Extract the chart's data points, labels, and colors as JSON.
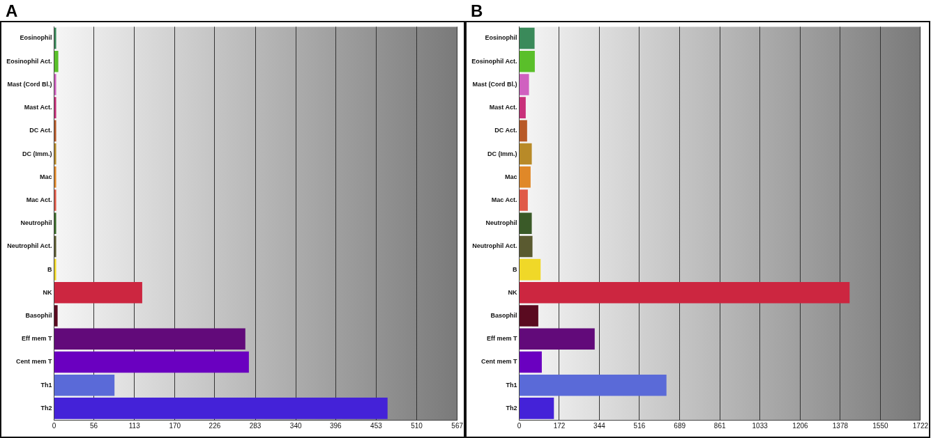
{
  "chart_data": [
    {
      "type": "bar",
      "title": "A",
      "orientation": "horizontal",
      "grid": "x",
      "categories": [
        "Eosinophil",
        "Eosinophil Act.",
        "Mast (Cord Bl.)",
        "Mast Act.",
        "DC Act.",
        "DC (Imm.)",
        "Mac",
        "Mac Act.",
        "Neutrophil",
        "Neutrophil Act.",
        "B",
        "NK",
        "Basophil",
        "Eff mem T",
        "Cent mem T",
        "Th1",
        "Th2"
      ],
      "values": [
        3,
        6,
        3,
        3,
        3,
        3,
        3,
        3,
        3,
        3,
        3,
        124,
        5,
        269,
        274,
        85,
        469
      ],
      "colors": [
        "#3a8a5a",
        "#5abf2a",
        "#d060c0",
        "#c8307a",
        "#b85a28",
        "#b88a28",
        "#e08828",
        "#e05a48",
        "#3a6a28",
        "#5a5a30",
        "#f0d828",
        "#cc2640",
        "#5a0a20",
        "#620a7a",
        "#6a00c0",
        "#5a6ad8",
        "#4422d8"
      ],
      "xlim": [
        0,
        567
      ],
      "xticks": [
        0,
        56,
        113,
        170,
        226,
        283,
        340,
        396,
        453,
        510,
        567
      ]
    },
    {
      "type": "bar",
      "title": "B",
      "orientation": "horizontal",
      "grid": "x",
      "categories": [
        "Eosinophil",
        "Eosinophil Act.",
        "Mast (Cord Bl.)",
        "Mast Act.",
        "DC Act.",
        "DC (Imm.)",
        "Mac",
        "Mac Act.",
        "Neutrophil",
        "Neutrophil Act.",
        "B",
        "NK",
        "Basophil",
        "Eff mem T",
        "Cent mem T",
        "Th1",
        "Th2"
      ],
      "values": [
        66,
        67,
        42,
        28,
        34,
        54,
        49,
        37,
        54,
        57,
        92,
        1418,
        82,
        324,
        97,
        632,
        149
      ],
      "colors": [
        "#3a8a5a",
        "#5abf2a",
        "#d060c0",
        "#c8307a",
        "#b85a28",
        "#b88a28",
        "#e08828",
        "#e05a48",
        "#3a5a28",
        "#5a5a30",
        "#f0d828",
        "#cc2640",
        "#5a0a20",
        "#620a7a",
        "#6a00c0",
        "#5a6ad8",
        "#4422d8"
      ],
      "xlim": [
        0,
        1722
      ],
      "xticks": [
        0,
        172,
        344,
        516,
        689,
        861,
        1033,
        1206,
        1378,
        1550,
        1722
      ]
    }
  ]
}
